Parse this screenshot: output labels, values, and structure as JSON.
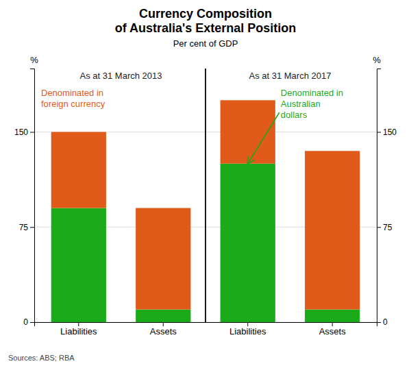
{
  "chart_data": {
    "type": "bar",
    "stacked": true,
    "grid": true,
    "title": "Currency Composition\nof Australia's External Position",
    "subtitle": "Per cent of GDP",
    "categories": [
      "Liabilities",
      "Assets",
      "Liabilities",
      "Assets"
    ],
    "series": [
      {
        "color": "#1aaa1a",
        "values": [
          90,
          10,
          125,
          10
        ]
      },
      {
        "color": "#e05a1a",
        "values": [
          60,
          80,
          50,
          125
        ]
      }
    ],
    "ylabel": "%",
    "y2label": "%",
    "ylim": [
      0,
      200
    ],
    "yticks": [
      0,
      75,
      150
    ],
    "y2lim": [
      0,
      200
    ],
    "y2ticks": [
      0,
      75,
      150
    ],
    "annotations": [
      {
        "text": "As at 31 March 2013"
      },
      {
        "text": "As at 31 March 2017"
      },
      {
        "text": "Denominated in\nforeign currency",
        "color": "#e05a1a"
      },
      {
        "text": "Denominated in\nAustralian\ndollars",
        "color": "#1aaa1a"
      }
    ],
    "source": "Sources: ABS; RBA"
  }
}
